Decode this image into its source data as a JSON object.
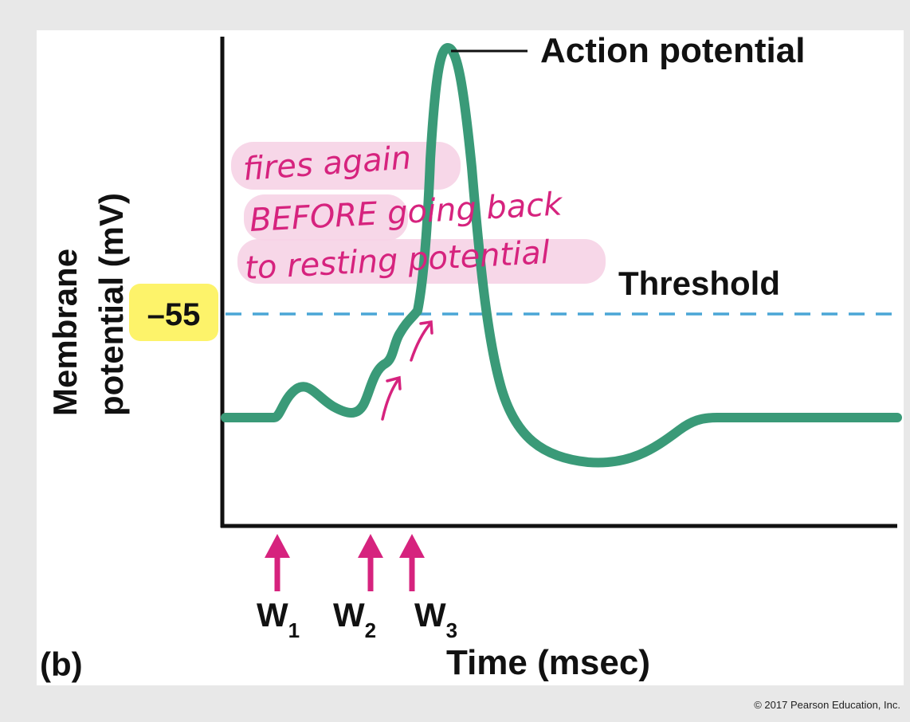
{
  "figure": {
    "panel_label": "(b)",
    "x_axis_label": "Time (msec)",
    "y_axis_label_line1": "Membrane",
    "y_axis_label_line2": "potential (mV)",
    "threshold_value": "–55",
    "threshold_label": "Threshold",
    "peak_label": "Action potential",
    "stimuli": [
      {
        "letter": "W",
        "subscript": "1"
      },
      {
        "letter": "W",
        "subscript": "2"
      },
      {
        "letter": "W",
        "subscript": "3"
      }
    ],
    "copyright": "© 2017 Pearson Education, Inc."
  },
  "handwritten_note": {
    "line1": "fires again",
    "line2": "BEFORE going back",
    "line3": "to resting potential"
  },
  "colors": {
    "trace": "#3a9a78",
    "threshold_line": "#4aa6d6",
    "stimulus_arrows": "#d6237e",
    "highlight_pink": "#f6d3e6",
    "highlight_yellow": "#fdf36a",
    "axis": "#111111"
  }
}
